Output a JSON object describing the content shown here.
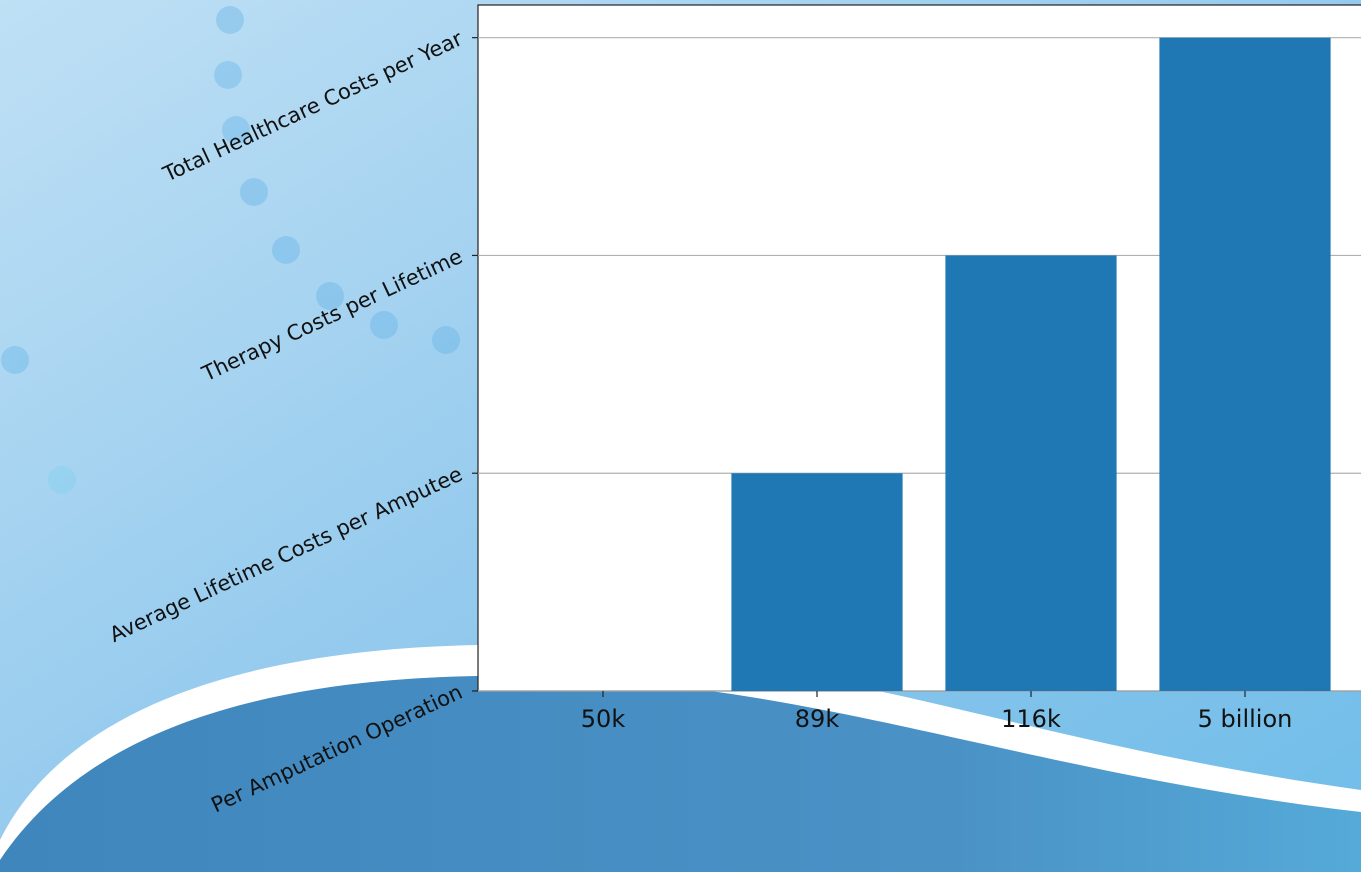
{
  "chart_data": {
    "type": "bar",
    "categories": [
      "50k",
      "89k",
      "116k",
      "5 billion"
    ],
    "values": [
      0,
      1,
      2,
      3
    ],
    "color": "#1f77b4",
    "ylim": [
      0,
      3.15
    ],
    "yticks": [
      {
        "value": 0,
        "label": "Per Amputation Operation"
      },
      {
        "value": 1,
        "label": "Average Lifetime Costs per Amputee"
      },
      {
        "value": 2,
        "label": "Therapy Costs per Lifetime"
      },
      {
        "value": 3,
        "label": "Total Healthcare Costs per Year"
      }
    ],
    "grid": true
  }
}
